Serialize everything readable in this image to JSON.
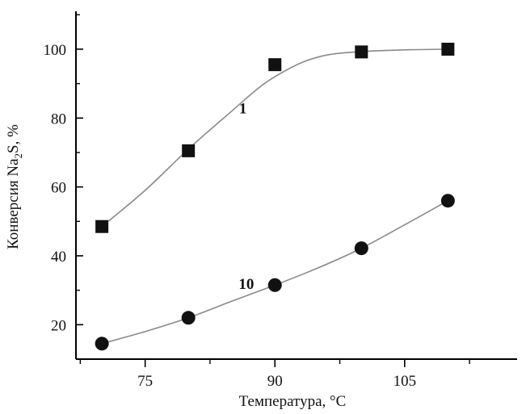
{
  "chart_data": {
    "type": "line",
    "xlabel": "Температура, °С",
    "ylabel": {
      "prefix": "Конверсия Na",
      "subscript": "2",
      "suffix": "S, %"
    },
    "xlim": [
      67,
      118
    ],
    "ylim": [
      10,
      111
    ],
    "xticks": [
      75,
      90,
      105
    ],
    "xtick_labels": [
      "75",
      "90",
      "105"
    ],
    "xminor": [
      67.5,
      82.5,
      97.5,
      112.5
    ],
    "yticks": [
      20,
      40,
      60,
      80,
      100
    ],
    "ytick_labels": [
      "20",
      "40",
      "60",
      "80",
      "100"
    ],
    "yminor": [
      30,
      50,
      70,
      90,
      110
    ],
    "grid": false,
    "legend": "none",
    "series": [
      {
        "name": "1",
        "marker": "square",
        "x": [
          70,
          80,
          90,
          100,
          110
        ],
        "y": [
          48.5,
          70.5,
          95.5,
          99.2,
          100
        ],
        "curve_x": [
          70,
          75,
          80,
          85,
          88,
          90,
          93,
          96,
          100,
          105,
          110
        ],
        "curve_y": [
          48.5,
          59,
          71,
          82,
          88.5,
          92,
          96,
          98.3,
          99.3,
          99.8,
          100
        ],
        "color": "#111111",
        "line_color": "#8a8a8a",
        "label_at": [
          86.3,
          83
        ]
      },
      {
        "name": "10",
        "marker": "circle",
        "x": [
          70,
          80,
          90,
          100,
          110
        ],
        "y": [
          14.5,
          22,
          31.5,
          42.2,
          56
        ],
        "curve_x": [
          70,
          75,
          80,
          85,
          90,
          95,
          100,
          105,
          110
        ],
        "curve_y": [
          14.5,
          18,
          22,
          26.8,
          31.5,
          36.5,
          42.2,
          49,
          56
        ],
        "color": "#111111",
        "line_color": "#8a8a8a",
        "label_at": [
          86.7,
          32
        ]
      }
    ]
  }
}
